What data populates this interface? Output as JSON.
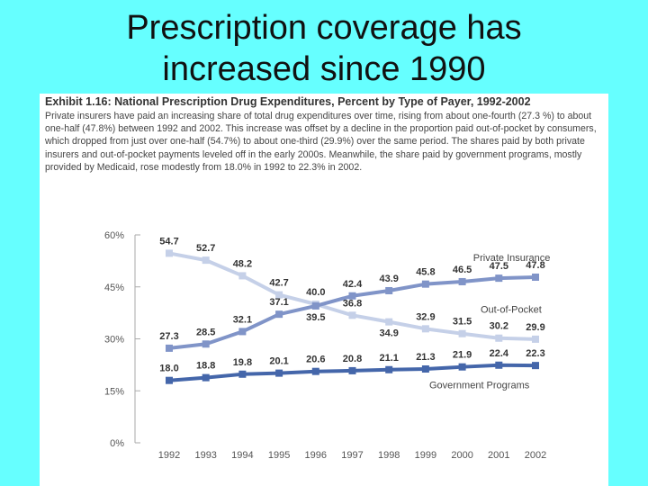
{
  "slide": {
    "title_line1": "Prescription coverage has",
    "title_line2": "increased since 1990"
  },
  "exhibit": {
    "title": "Exhibit 1.16: National Prescription Drug Expenditures, Percent by Type of Payer, 1992-2002",
    "description": "Private insurers have paid an increasing share of total drug expenditures over time, rising from about one-fourth (27.3 %) to about one-half (47.8%) between 1992 and 2002. This increase was offset by a decline in the proportion paid out-of-pocket by consumers, which dropped from just over one-half (54.7%) to about one-third (29.9%) over the same period. The shares paid by both private insurers and out-of-pocket payments leveled off in the early 2000s. Meanwhile, the share paid by government programs, mostly provided by Medicaid, rose modestly from 18.0% in 1992 to 22.3% in 2002."
  },
  "chart_data": {
    "type": "line",
    "title": "Exhibit 1.16: National Prescription Drug Expenditures, Percent by Type of Payer, 1992-2002",
    "xlabel": "",
    "ylabel": "",
    "categories": [
      "1992",
      "1993",
      "1994",
      "1995",
      "1996",
      "1997",
      "1998",
      "1999",
      "2000",
      "2001",
      "2002"
    ],
    "ylim": [
      0,
      60
    ],
    "yticks": [
      0,
      15,
      30,
      45,
      60
    ],
    "ytick_labels": [
      "0%",
      "15%",
      "30%",
      "45%",
      "60%"
    ],
    "grid": false,
    "series": [
      {
        "name": "Private Insurance",
        "color": "#8094c8",
        "values": [
          27.3,
          28.5,
          32.1,
          37.1,
          39.5,
          42.4,
          43.9,
          45.8,
          46.5,
          47.5,
          47.8
        ],
        "labels": [
          "27.3",
          "28.5",
          "32.1",
          "37.1",
          "39.5",
          "42.4",
          "43.9",
          "45.8",
          "46.5",
          "47.5",
          "47.8"
        ]
      },
      {
        "name": "Out-of-Pocket",
        "color": "#c5d0e8",
        "values": [
          54.7,
          52.7,
          48.2,
          42.7,
          40.0,
          36.8,
          34.9,
          32.9,
          31.5,
          30.2,
          29.9
        ],
        "labels": [
          "54.7",
          "52.7",
          "48.2",
          "42.7",
          "40.0",
          "36.8",
          "34.9",
          "32.9",
          "31.5",
          "30.2",
          "29.9"
        ]
      },
      {
        "name": "Government Programs",
        "color": "#4466aa",
        "values": [
          18.0,
          18.8,
          19.8,
          20.1,
          20.6,
          20.8,
          21.1,
          21.3,
          21.9,
          22.4,
          22.3
        ],
        "labels": [
          "18.0",
          "18.8",
          "19.8",
          "20.1",
          "20.6",
          "20.8",
          "21.1",
          "21.3",
          "21.9",
          "22.4",
          "22.3"
        ]
      }
    ]
  }
}
